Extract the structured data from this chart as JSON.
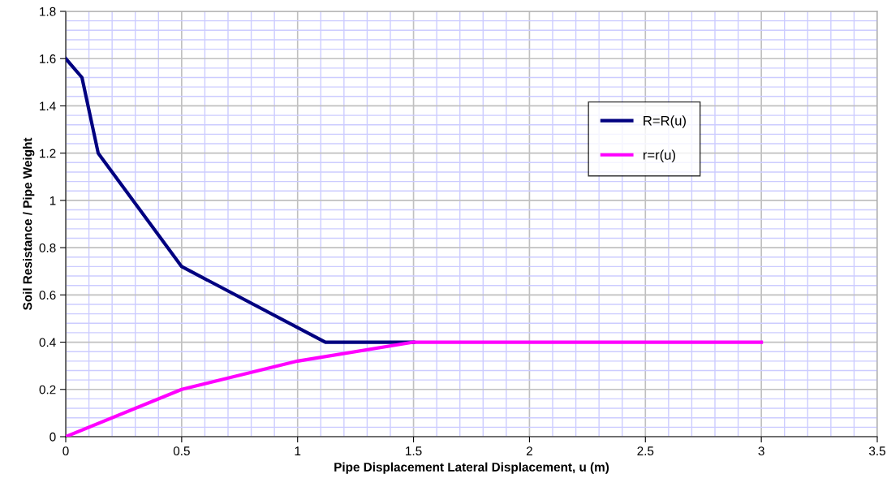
{
  "chart_data": {
    "type": "line",
    "xlabel": "Pipe Displacement Lateral Displacement, u (m)",
    "ylabel": "Soil Resistance / Pipe Weight",
    "series": [
      {
        "name": "R=R(u)",
        "color": "#000080",
        "x": [
          0,
          0.07,
          0.14,
          0.5,
          1.12,
          1.5
        ],
        "values": [
          1.6,
          1.52,
          1.2,
          0.72,
          0.4,
          0.4
        ]
      },
      {
        "name": "r=r(u)",
        "color": "#ff00ff",
        "x": [
          0,
          0.5,
          1,
          1.5,
          3
        ],
        "values": [
          0,
          0.2,
          0.32,
          0.4,
          0.4
        ]
      }
    ],
    "xlim": [
      0,
      3.5
    ],
    "xticks": [
      0,
      {
        "value": 0.1,
        "label": null
      },
      {
        "value": 0.2,
        "label": null
      },
      {
        "value": 0.3,
        "label": null
      },
      {
        "value": 0.4,
        "label": null
      },
      0.5,
      {
        "value": 0.6,
        "label": null
      },
      {
        "value": 0.7,
        "label": null
      },
      {
        "value": 0.8,
        "label": null
      },
      {
        "value": 0.9,
        "label": null
      },
      1,
      {
        "value": 1.1,
        "label": null
      },
      {
        "value": 1.2,
        "label": null
      },
      {
        "value": 1.3,
        "label": null
      },
      {
        "value": 1.4,
        "label": null
      },
      1.5,
      {
        "value": 1.6,
        "label": null
      },
      {
        "value": 1.7,
        "label": null
      },
      {
        "value": 1.8,
        "label": null
      },
      {
        "value": 1.9,
        "label": null
      },
      2,
      {
        "value": 2.1,
        "label": null
      },
      {
        "value": 2.2,
        "label": null
      },
      {
        "value": 2.3,
        "label": null
      },
      {
        "value": 2.4,
        "label": null
      },
      2.5,
      {
        "value": 2.6,
        "label": null
      },
      {
        "value": 2.7,
        "label": null
      },
      {
        "value": 2.8,
        "label": null
      },
      {
        "value": 2.9,
        "label": null
      },
      3,
      {
        "value": 3.1,
        "label": null
      },
      {
        "value": 3.2,
        "label": null
      },
      {
        "value": 3.3,
        "label": null
      },
      {
        "value": 3.4,
        "label": null
      },
      3.5
    ],
    "ylim": [
      0,
      1.8
    ],
    "yticks": [
      0,
      {
        "value": 0.04,
        "label": null
      },
      {
        "value": 0.08,
        "label": null
      },
      {
        "value": 0.12,
        "label": null
      },
      {
        "value": 0.16,
        "label": null
      },
      0.2,
      {
        "value": 0.24,
        "label": null
      },
      {
        "value": 0.28,
        "label": null
      },
      {
        "value": 0.32,
        "label": null
      },
      {
        "value": 0.36,
        "label": null
      },
      0.4,
      {
        "value": 0.44,
        "label": null
      },
      {
        "value": 0.48,
        "label": null
      },
      {
        "value": 0.52,
        "label": null
      },
      {
        "value": 0.56,
        "label": null
      },
      0.6,
      {
        "value": 0.64,
        "label": null
      },
      {
        "value": 0.68,
        "label": null
      },
      {
        "value": 0.72,
        "label": null
      },
      {
        "value": 0.76,
        "label": null
      },
      0.8,
      {
        "value": 0.84,
        "label": null
      },
      {
        "value": 0.88,
        "label": null
      },
      {
        "value": 0.92,
        "label": null
      },
      {
        "value": 0.96,
        "label": null
      },
      1,
      {
        "value": 1.04,
        "label": null
      },
      {
        "value": 1.08,
        "label": null
      },
      {
        "value": 1.12,
        "label": null
      },
      {
        "value": 1.16,
        "label": null
      },
      1.2,
      {
        "value": 1.24,
        "label": null
      },
      {
        "value": 1.28,
        "label": null
      },
      {
        "value": 1.32,
        "label": null
      },
      {
        "value": 1.36,
        "label": null
      },
      1.4,
      {
        "value": 1.44,
        "label": null
      },
      {
        "value": 1.48,
        "label": null
      },
      {
        "value": 1.52,
        "label": null
      },
      {
        "value": 1.56,
        "label": null
      },
      1.6,
      {
        "value": 1.64,
        "label": null
      },
      {
        "value": 1.68,
        "label": null
      },
      {
        "value": 1.72,
        "label": null
      },
      {
        "value": 1.76,
        "label": null
      },
      1.8
    ],
    "grid": true,
    "legend": "right",
    "marker": "none",
    "line_style": "solid"
  }
}
